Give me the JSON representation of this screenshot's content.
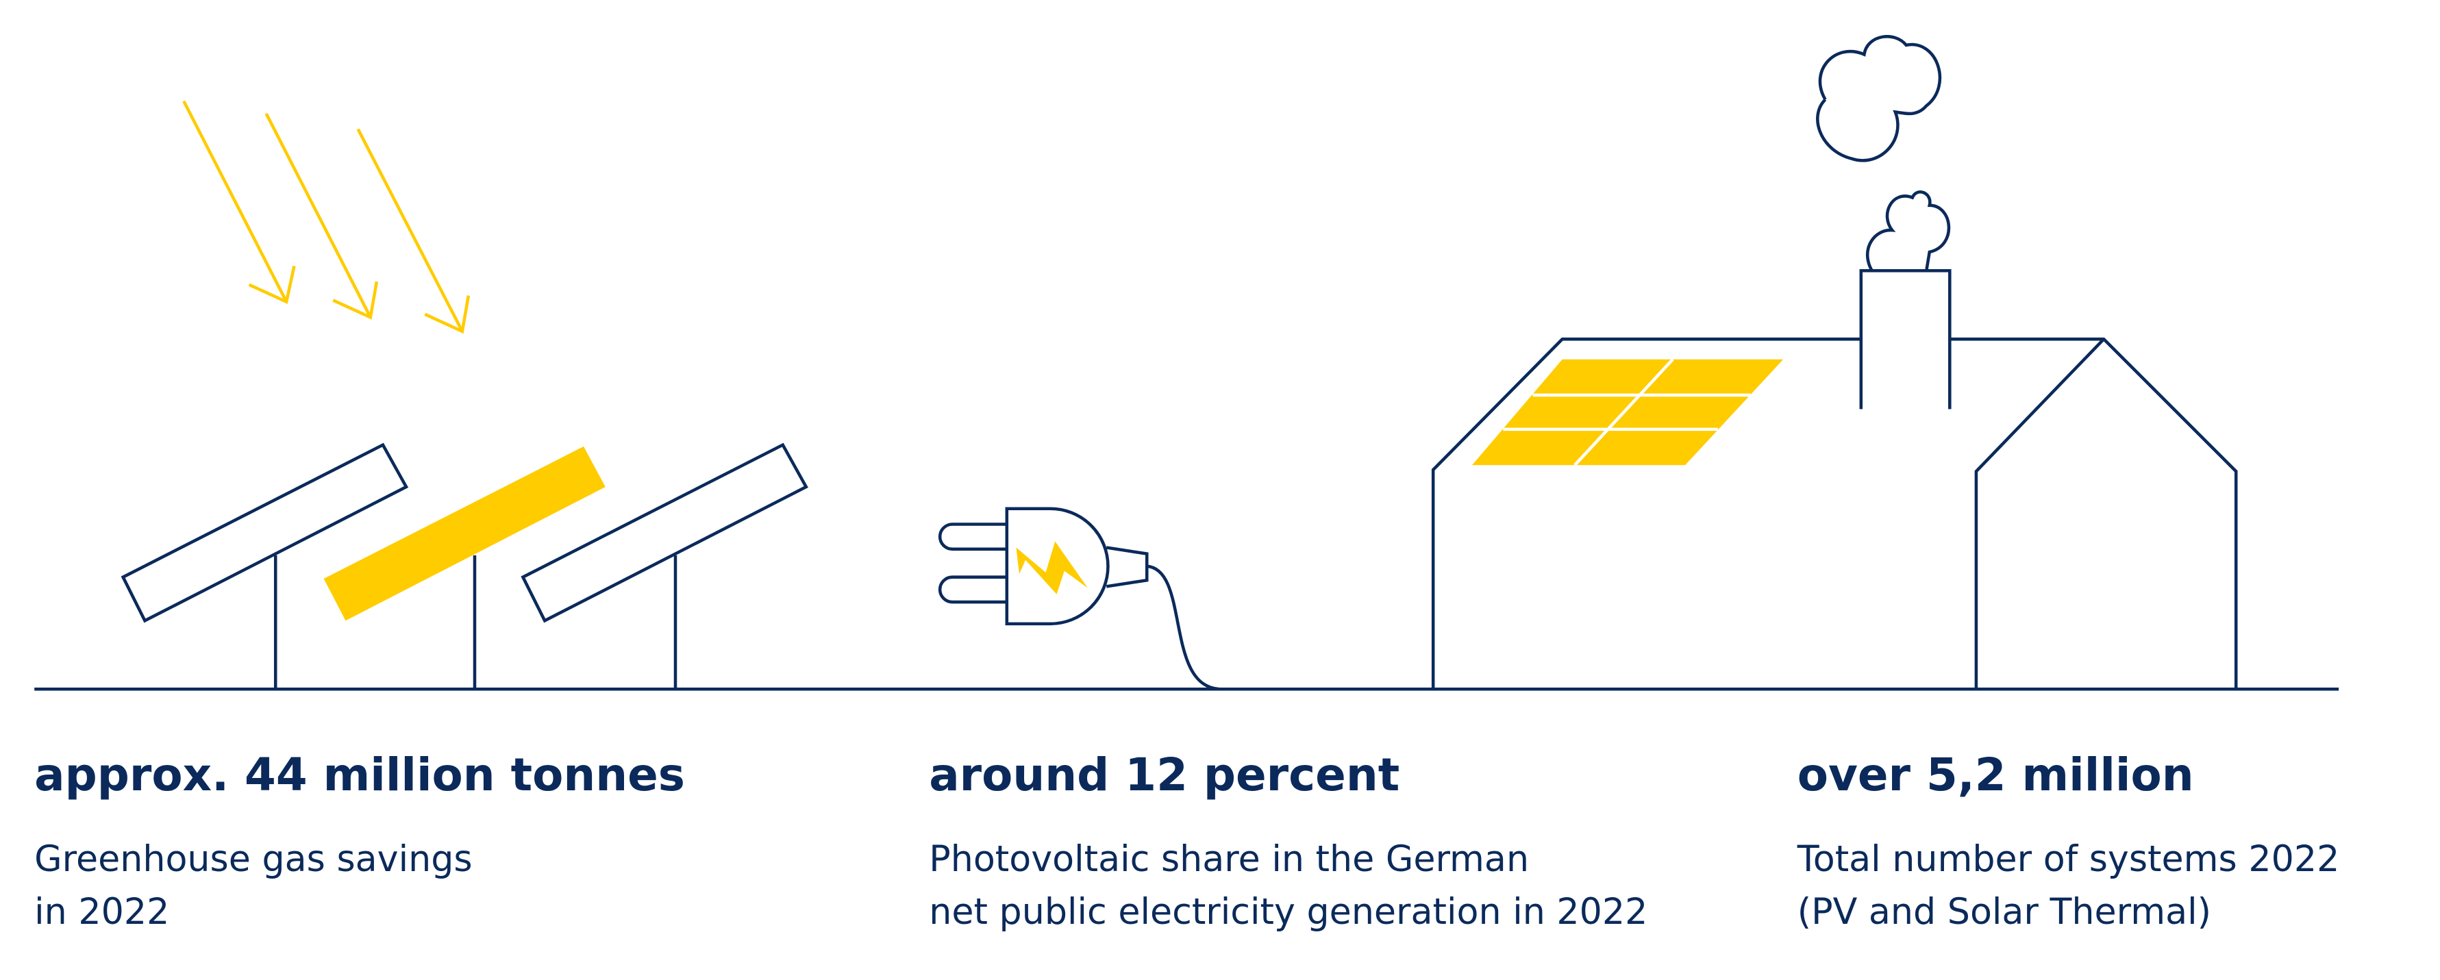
{
  "colors": {
    "navy": "#0b2a5b",
    "yellow": "#ffcc00"
  },
  "stats": [
    {
      "headline": "approx. 44 million tonnes",
      "lines": [
        "Greenhouse gas savings",
        "in 2022"
      ],
      "illustration": "solar-panels-with-sun-rays"
    },
    {
      "headline": "around 12 percent",
      "lines": [
        "Photovoltaic share in the German",
        "net public electricity generation in 2022"
      ],
      "illustration": "electric-plug"
    },
    {
      "headline": "over 5,2 million",
      "lines": [
        "Total number of systems 2022",
        "(PV and Solar Thermal)"
      ],
      "illustration": "house-with-rooftop-solar"
    }
  ]
}
